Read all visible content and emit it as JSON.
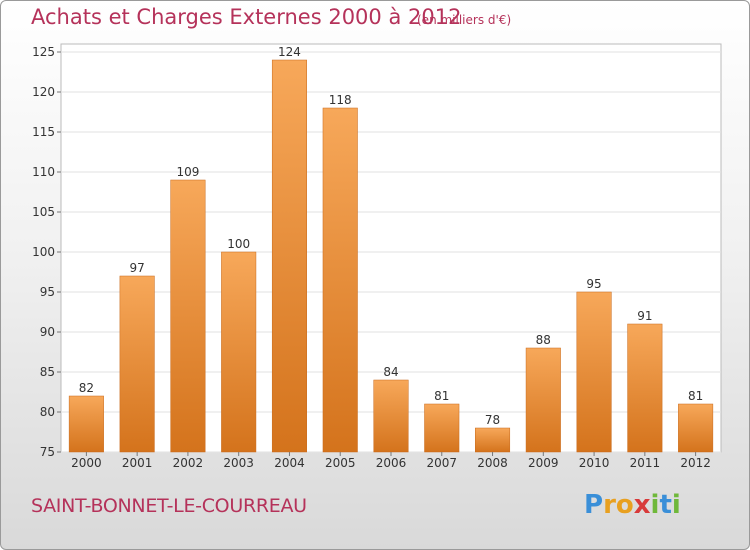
{
  "header": {
    "title": "Achats et Charges Externes 2000 à 2012",
    "subtitle": "(en milliers d'€)"
  },
  "footer": {
    "commune": "SAINT-BONNET-LE-COURREAU",
    "logo_letters": [
      "P",
      "r",
      "o",
      "x",
      "i",
      "t",
      "i"
    ],
    "logo_colors": [
      "#3a8fd8",
      "#e8a020",
      "#e8a020",
      "#d83a3a",
      "#6fb83a",
      "#3a8fd8",
      "#6fb83a"
    ]
  },
  "chart_data": {
    "type": "bar",
    "categories": [
      "2000",
      "2001",
      "2002",
      "2003",
      "2004",
      "2005",
      "2006",
      "2007",
      "2008",
      "2009",
      "2010",
      "2011",
      "2012"
    ],
    "values": [
      82,
      97,
      109,
      100,
      124,
      118,
      84,
      81,
      78,
      88,
      95,
      91,
      81
    ],
    "data_labels": [
      "82",
      "97",
      "109",
      "100",
      "124",
      "118",
      "84",
      "81",
      "78",
      "88",
      "95",
      "91",
      "81"
    ],
    "ylim": [
      75,
      126
    ],
    "yticks": [
      75,
      80,
      85,
      90,
      95,
      100,
      105,
      110,
      115,
      120,
      125
    ],
    "ytick_labels": [
      "75",
      "80",
      "85",
      "90",
      "95",
      "100",
      "105",
      "110",
      "115",
      "120",
      "125"
    ],
    "grid": true,
    "bar_color_top": "#f7a85a",
    "bar_color_bottom": "#d4731c"
  }
}
